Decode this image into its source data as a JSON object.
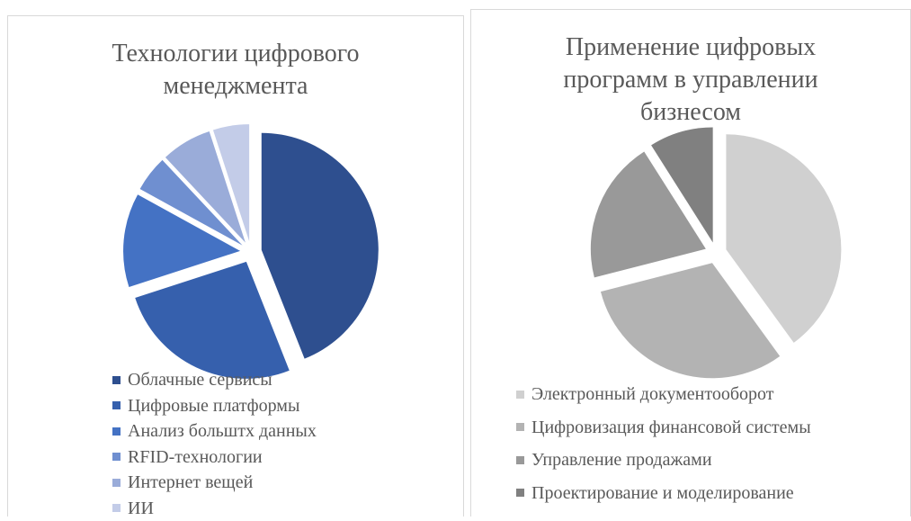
{
  "chart_data": [
    {
      "type": "pie",
      "title": "Технологии цифрового менеджмента",
      "categories": [
        "Облачные сервисы",
        "Цифровые платформы",
        "Анализ больштх данных",
        "RFID-технологии",
        "Интернет вещей",
        "ИИ"
      ],
      "values": [
        44,
        26,
        13,
        5,
        7,
        5
      ],
      "colors": [
        "#2e4f8f",
        "#3660ad",
        "#4472c4",
        "#6f8fd0",
        "#9aacd9",
        "#c3cce8"
      ]
    },
    {
      "type": "pie",
      "title": "Применение цифровых программ в управлении бизнесом",
      "categories": [
        "Электронный документооборот",
        "Цифровизация финансовой системы",
        "Управление продажами",
        "Проектирование и моделирование"
      ],
      "values": [
        40,
        31,
        20,
        9
      ],
      "colors": [
        "#d0d0d0",
        "#b3b3b3",
        "#999999",
        "#808080"
      ]
    }
  ]
}
